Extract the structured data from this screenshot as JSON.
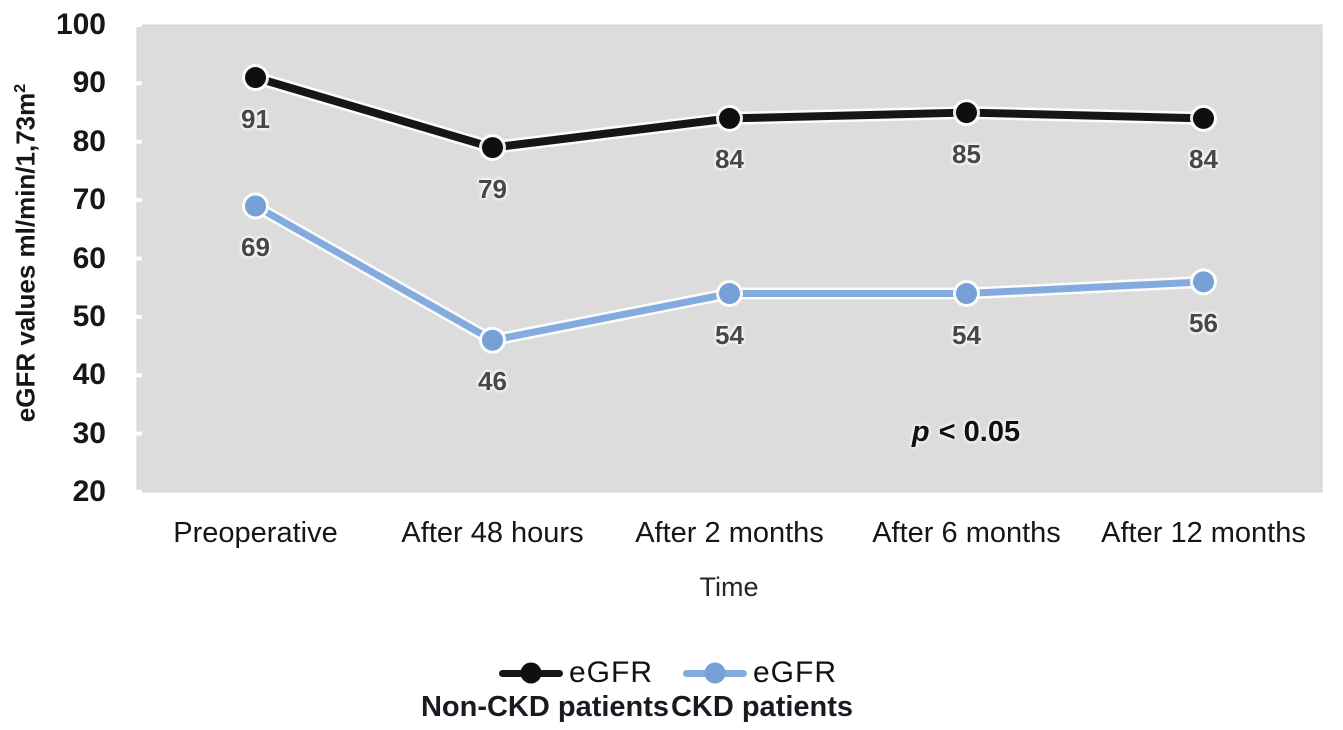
{
  "chart_data": {
    "type": "line",
    "categories": [
      "Preoperative",
      "After 48 hours",
      "After 2 months",
      "After 6 months",
      "After 12 months"
    ],
    "series": [
      {
        "name": "eGFR",
        "subtitle": "Non-CKD patients",
        "color": "#161616",
        "marker_color": "#0f0f0f",
        "values": [
          91,
          79,
          84,
          85,
          84
        ]
      },
      {
        "name": "eGFR",
        "subtitle": "CKD patients",
        "color": "#84abdd",
        "marker_color": "#76a0d6",
        "values": [
          69,
          46,
          54,
          54,
          56
        ]
      }
    ],
    "ylabel": {
      "text": "eGFR values ml/min/1,73m",
      "superscript": "2"
    },
    "xlabel": "Time",
    "ylim": [
      20,
      100
    ],
    "yticks": [
      20,
      30,
      40,
      50,
      60,
      70,
      80,
      90,
      100
    ],
    "annotation": {
      "italic": "p",
      "rest": "< 0.05"
    },
    "grid": false,
    "legend_position": "bottom",
    "plot_bg": "#dcdcdc",
    "value_label_color": "#474747"
  }
}
